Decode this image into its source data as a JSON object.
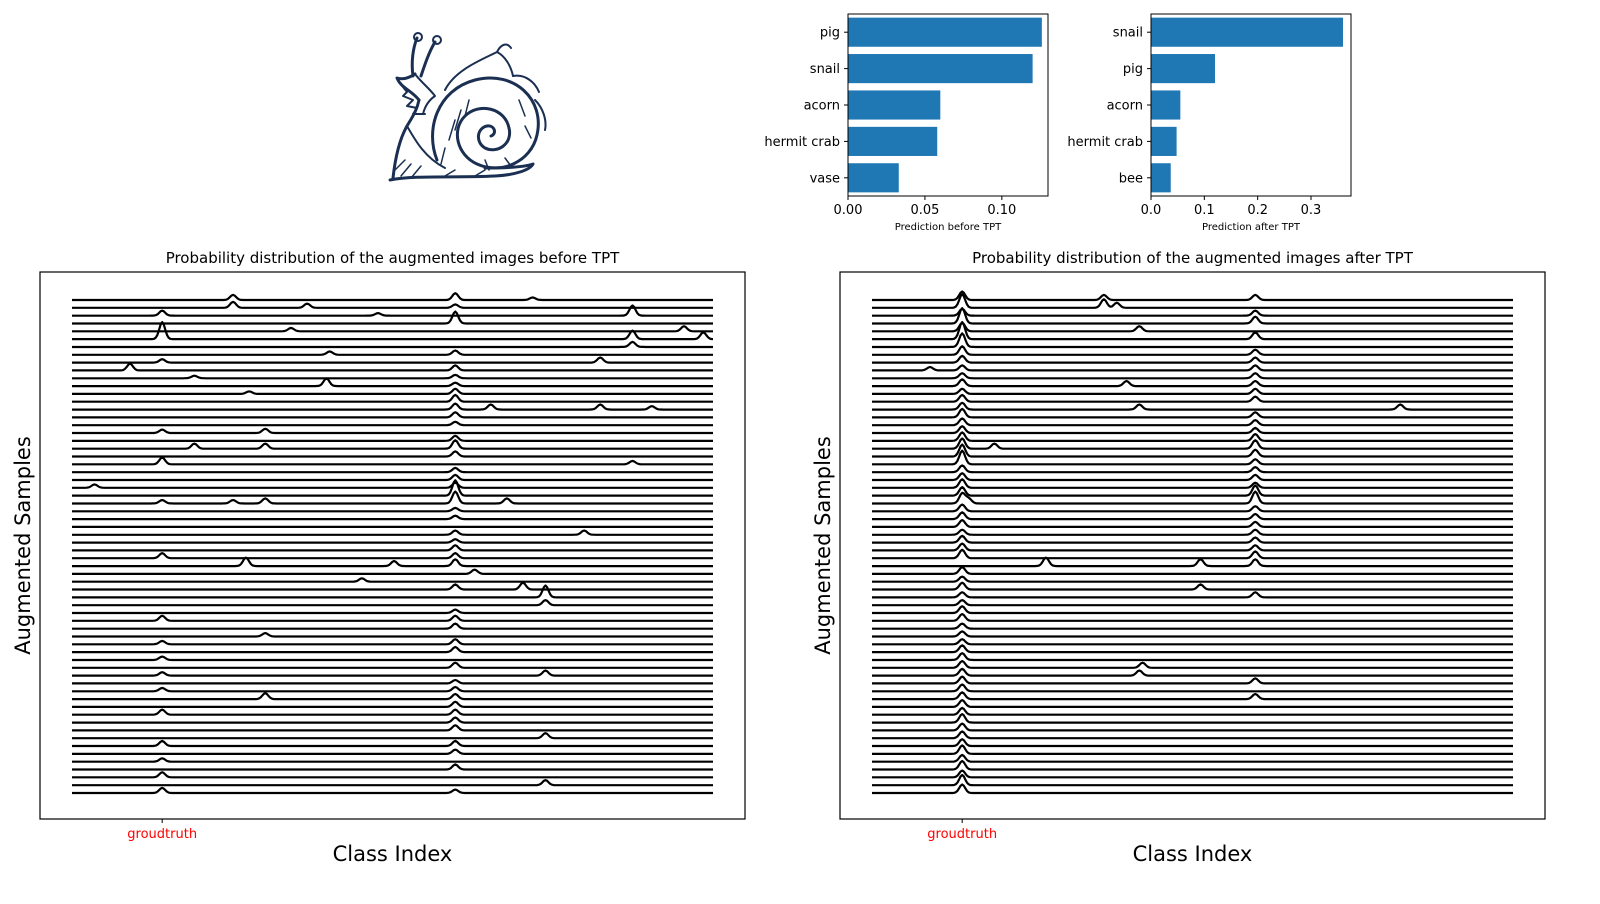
{
  "sample_image": {
    "subject": "snail",
    "ink_color": "#1b2f52"
  },
  "chart_data": [
    {
      "type": "bar",
      "orientation": "horizontal",
      "categories": [
        "pig",
        "snail",
        "acorn",
        "hermit crab",
        "vase"
      ],
      "values": [
        0.126,
        0.12,
        0.06,
        0.058,
        0.033
      ],
      "xlim": [
        0,
        0.13
      ],
      "xticks": [
        0.0,
        0.05,
        0.1
      ],
      "xtick_labels": [
        "0.00",
        "0.05",
        "0.10"
      ],
      "xlabel": "Prediction before TPT",
      "bar_color": "#1f77b4"
    },
    {
      "type": "bar",
      "orientation": "horizontal",
      "categories": [
        "snail",
        "pig",
        "acorn",
        "hermit crab",
        "bee"
      ],
      "values": [
        0.36,
        0.12,
        0.055,
        0.048,
        0.037
      ],
      "xlim": [
        0,
        0.375
      ],
      "xticks": [
        0.0,
        0.1,
        0.2,
        0.3
      ],
      "xtick_labels": [
        "0.0",
        "0.1",
        "0.2",
        "0.3"
      ],
      "xlabel": "Prediction after TPT",
      "bar_color": "#1f77b4"
    },
    {
      "type": "line",
      "subtype": "ridgeline",
      "title": "Probability distribution of the augmented images before TPT",
      "xlabel": "Class Index",
      "ylabel": "Augmented Samples",
      "num_samples": 64,
      "num_classes": 200,
      "x_range": [
        0,
        199
      ],
      "groundtruth_class": 28,
      "groundtruth_label": "groudtruth",
      "groundtruth_color": "#ff0000",
      "peaks": [
        [
          0,
          50,
          0.3
        ],
        [
          0,
          119,
          0.4
        ],
        [
          0,
          143,
          0.15
        ],
        [
          1,
          73,
          0.25
        ],
        [
          1,
          50,
          0.35
        ],
        [
          1,
          119,
          0.2
        ],
        [
          2,
          174,
          0.6
        ],
        [
          2,
          28,
          0.3
        ],
        [
          2,
          95,
          0.15
        ],
        [
          3,
          119,
          0.7
        ],
        [
          4,
          190,
          0.3
        ],
        [
          4,
          68,
          0.2
        ],
        [
          5,
          28,
          1.0
        ],
        [
          5,
          174,
          0.5
        ],
        [
          5,
          196,
          0.4
        ],
        [
          6,
          174,
          0.3
        ],
        [
          7,
          119,
          0.25
        ],
        [
          7,
          80,
          0.2
        ],
        [
          8,
          28,
          0.2
        ],
        [
          8,
          164,
          0.3
        ],
        [
          9,
          18,
          0.4
        ],
        [
          9,
          119,
          0.3
        ],
        [
          10,
          38,
          0.15
        ],
        [
          10,
          119,
          0.2
        ],
        [
          11,
          79,
          0.45
        ],
        [
          11,
          119,
          0.2
        ],
        [
          12,
          119,
          0.3
        ],
        [
          12,
          55,
          0.15
        ],
        [
          13,
          119,
          0.4
        ],
        [
          14,
          119,
          0.35
        ],
        [
          14,
          130,
          0.3
        ],
        [
          14,
          164,
          0.3
        ],
        [
          14,
          180,
          0.2
        ],
        [
          15,
          119,
          0.3
        ],
        [
          16,
          119,
          0.2
        ],
        [
          17,
          28,
          0.2
        ],
        [
          17,
          60,
          0.25
        ],
        [
          18,
          119,
          0.3
        ],
        [
          19,
          38,
          0.3
        ],
        [
          19,
          60,
          0.3
        ],
        [
          19,
          119,
          0.5
        ],
        [
          20,
          119,
          0.3
        ],
        [
          21,
          28,
          0.4
        ],
        [
          21,
          174,
          0.2
        ],
        [
          22,
          119,
          0.25
        ],
        [
          23,
          119,
          0.3
        ],
        [
          24,
          7,
          0.2
        ],
        [
          24,
          119,
          0.3
        ],
        [
          25,
          119,
          0.9
        ],
        [
          26,
          28,
          0.2
        ],
        [
          26,
          50,
          0.2
        ],
        [
          26,
          119,
          0.7
        ],
        [
          26,
          60,
          0.3
        ],
        [
          26,
          135,
          0.3
        ],
        [
          27,
          119,
          0.2
        ],
        [
          28,
          119,
          0.2
        ],
        [
          30,
          119,
          0.25
        ],
        [
          30,
          159,
          0.25
        ],
        [
          31,
          119,
          0.2
        ],
        [
          32,
          119,
          0.3
        ],
        [
          33,
          28,
          0.3
        ],
        [
          33,
          119,
          0.3
        ],
        [
          34,
          54,
          0.5
        ],
        [
          34,
          119,
          0.4
        ],
        [
          34,
          100,
          0.3
        ],
        [
          35,
          125,
          0.25
        ],
        [
          36,
          90,
          0.2
        ],
        [
          37,
          119,
          0.3
        ],
        [
          37,
          140,
          0.4
        ],
        [
          38,
          147,
          0.7
        ],
        [
          39,
          147,
          0.3
        ],
        [
          40,
          119,
          0.2
        ],
        [
          41,
          28,
          0.3
        ],
        [
          41,
          119,
          0.3
        ],
        [
          42,
          119,
          0.3
        ],
        [
          43,
          60,
          0.2
        ],
        [
          44,
          28,
          0.2
        ],
        [
          44,
          119,
          0.3
        ],
        [
          45,
          119,
          0.3
        ],
        [
          46,
          28,
          0.2
        ],
        [
          47,
          119,
          0.3
        ],
        [
          48,
          28,
          0.2
        ],
        [
          48,
          147,
          0.3
        ],
        [
          49,
          119,
          0.2
        ],
        [
          50,
          28,
          0.2
        ],
        [
          50,
          119,
          0.25
        ],
        [
          51,
          60,
          0.35
        ],
        [
          51,
          119,
          0.3
        ],
        [
          52,
          119,
          0.3
        ],
        [
          53,
          28,
          0.3
        ],
        [
          53,
          119,
          0.3
        ],
        [
          54,
          119,
          0.3
        ],
        [
          55,
          119,
          0.3
        ],
        [
          56,
          147,
          0.3
        ],
        [
          57,
          28,
          0.3
        ],
        [
          57,
          119,
          0.3
        ],
        [
          58,
          119,
          0.25
        ],
        [
          59,
          28,
          0.2
        ],
        [
          60,
          119,
          0.3
        ],
        [
          61,
          28,
          0.3
        ],
        [
          62,
          147,
          0.3
        ],
        [
          63,
          28,
          0.3
        ],
        [
          63,
          119,
          0.2
        ]
      ]
    },
    {
      "type": "line",
      "subtype": "ridgeline",
      "title": "Probability distribution of the augmented images after TPT",
      "xlabel": "Class Index",
      "ylabel": "Augmented Samples",
      "num_samples": 64,
      "num_classes": 200,
      "x_range": [
        0,
        199
      ],
      "groundtruth_class": 28,
      "groundtruth_label": "groudtruth",
      "groundtruth_color": "#ff0000",
      "peaks": [
        [
          0,
          28,
          0.5
        ],
        [
          0,
          72,
          0.3
        ],
        [
          0,
          119,
          0.3
        ],
        [
          1,
          28,
          0.8
        ],
        [
          1,
          72,
          0.5
        ],
        [
          1,
          76,
          0.3
        ],
        [
          2,
          28,
          0.4
        ],
        [
          2,
          119,
          0.3
        ],
        [
          3,
          28,
          0.9
        ],
        [
          3,
          119,
          0.4
        ],
        [
          4,
          28,
          0.5
        ],
        [
          4,
          83,
          0.3
        ],
        [
          5,
          28,
          1.0
        ],
        [
          5,
          119,
          0.4
        ],
        [
          6,
          28,
          0.8
        ],
        [
          7,
          28,
          0.5
        ],
        [
          7,
          119,
          0.3
        ],
        [
          8,
          28,
          0.4
        ],
        [
          8,
          119,
          0.3
        ],
        [
          9,
          28,
          0.3
        ],
        [
          9,
          18,
          0.2
        ],
        [
          9,
          119,
          0.3
        ],
        [
          10,
          28,
          0.3
        ],
        [
          10,
          119,
          0.3
        ],
        [
          11,
          28,
          0.4
        ],
        [
          11,
          79,
          0.3
        ],
        [
          11,
          119,
          0.3
        ],
        [
          12,
          28,
          0.3
        ],
        [
          12,
          119,
          0.3
        ],
        [
          13,
          28,
          0.4
        ],
        [
          13,
          119,
          0.3
        ],
        [
          14,
          28,
          0.4
        ],
        [
          14,
          83,
          0.3
        ],
        [
          14,
          164,
          0.3
        ],
        [
          15,
          28,
          0.5
        ],
        [
          15,
          119,
          0.3
        ],
        [
          16,
          28,
          0.4
        ],
        [
          16,
          119,
          0.3
        ],
        [
          17,
          28,
          0.4
        ],
        [
          17,
          119,
          0.3
        ],
        [
          18,
          28,
          0.5
        ],
        [
          18,
          119,
          0.4
        ],
        [
          19,
          28,
          0.6
        ],
        [
          19,
          38,
          0.3
        ],
        [
          19,
          119,
          0.5
        ],
        [
          20,
          28,
          0.7
        ],
        [
          20,
          119,
          0.4
        ],
        [
          21,
          28,
          0.8
        ],
        [
          21,
          119,
          0.3
        ],
        [
          22,
          28,
          0.4
        ],
        [
          22,
          119,
          0.3
        ],
        [
          23,
          28,
          0.4
        ],
        [
          23,
          119,
          0.3
        ],
        [
          24,
          28,
          0.5
        ],
        [
          24,
          119,
          0.3
        ],
        [
          25,
          28,
          0.5
        ],
        [
          25,
          119,
          0.6
        ],
        [
          26,
          28,
          0.6
        ],
        [
          26,
          119,
          0.7
        ],
        [
          26,
          30,
          0.3
        ],
        [
          27,
          28,
          0.4
        ],
        [
          27,
          119,
          0.3
        ],
        [
          28,
          28,
          0.4
        ],
        [
          28,
          119,
          0.3
        ],
        [
          29,
          28,
          0.4
        ],
        [
          29,
          119,
          0.3
        ],
        [
          30,
          28,
          0.3
        ],
        [
          30,
          119,
          0.3
        ],
        [
          31,
          28,
          0.4
        ],
        [
          31,
          119,
          0.3
        ],
        [
          32,
          28,
          0.4
        ],
        [
          32,
          119,
          0.3
        ],
        [
          33,
          28,
          0.5
        ],
        [
          33,
          119,
          0.4
        ],
        [
          34,
          54,
          0.5
        ],
        [
          34,
          119,
          0.4
        ],
        [
          34,
          102,
          0.4
        ],
        [
          35,
          28,
          0.4
        ],
        [
          36,
          28,
          0.3
        ],
        [
          37,
          28,
          0.4
        ],
        [
          37,
          102,
          0.3
        ],
        [
          38,
          28,
          0.3
        ],
        [
          38,
          119,
          0.3
        ],
        [
          39,
          28,
          0.3
        ],
        [
          40,
          28,
          0.4
        ],
        [
          41,
          28,
          0.4
        ],
        [
          42,
          28,
          0.3
        ],
        [
          43,
          28,
          0.3
        ],
        [
          44,
          28,
          0.3
        ],
        [
          45,
          28,
          0.4
        ],
        [
          46,
          28,
          0.4
        ],
        [
          47,
          28,
          0.4
        ],
        [
          47,
          84,
          0.3
        ],
        [
          48,
          28,
          0.4
        ],
        [
          48,
          83,
          0.3
        ],
        [
          49,
          28,
          0.4
        ],
        [
          49,
          119,
          0.3
        ],
        [
          50,
          28,
          0.4
        ],
        [
          51,
          28,
          0.4
        ],
        [
          51,
          119,
          0.3
        ],
        [
          52,
          28,
          0.4
        ],
        [
          53,
          28,
          0.4
        ],
        [
          54,
          28,
          0.5
        ],
        [
          55,
          28,
          0.4
        ],
        [
          56,
          28,
          0.4
        ],
        [
          57,
          28,
          0.4
        ],
        [
          58,
          28,
          0.5
        ],
        [
          59,
          28,
          0.4
        ],
        [
          60,
          28,
          0.5
        ],
        [
          61,
          28,
          0.4
        ],
        [
          62,
          28,
          0.6
        ],
        [
          63,
          28,
          0.5
        ]
      ]
    }
  ]
}
